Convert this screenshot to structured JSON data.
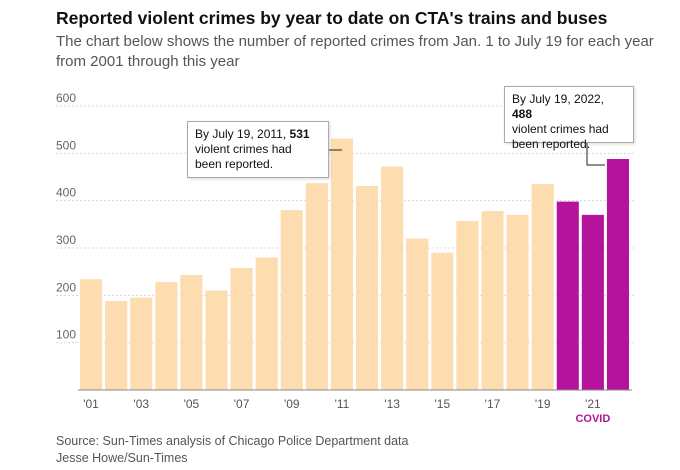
{
  "header": {
    "title": "Reported violent crimes by year to date on CTA's trains and buses",
    "subtitle": "The chart below shows the number of reported crimes from Jan. 1 to July 19 for each year from 2001 through this year"
  },
  "chart_data": {
    "type": "bar",
    "categories": [
      "2001",
      "2002",
      "2003",
      "2004",
      "2005",
      "2006",
      "2007",
      "2008",
      "2009",
      "2010",
      "2011",
      "2012",
      "2013",
      "2014",
      "2015",
      "2016",
      "2017",
      "2018",
      "2019",
      "2020",
      "2021",
      "2022"
    ],
    "values": [
      234,
      188,
      195,
      228,
      243,
      210,
      258,
      280,
      380,
      437,
      531,
      431,
      472,
      320,
      290,
      357,
      378,
      370,
      435,
      398,
      370,
      488
    ],
    "x_tick_labels": [
      "'01",
      "'03",
      "'05",
      "'07",
      "'09",
      "'11",
      "'13",
      "'15",
      "'17",
      "'19",
      "'21"
    ],
    "y_ticks": [
      100,
      200,
      300,
      400,
      500,
      600
    ],
    "ylim": [
      0,
      620
    ],
    "grid": true,
    "colors": {
      "normal": "#fddcb0",
      "covid": "#b5129e"
    },
    "covid_years": [
      "2020",
      "2021",
      "2022"
    ],
    "covid_label": "COVID",
    "annotations": [
      {
        "year": "2011",
        "pre": "By July 19, 2011,",
        "value": "531",
        "post": "violent crimes had been reported."
      },
      {
        "year": "2022",
        "pre": "By July 19, 2022,",
        "value": "488",
        "post": "violent crimes had been reported."
      }
    ]
  },
  "footer": {
    "source": "Source: Sun-Times analysis of Chicago Police Department data",
    "credit": "Jesse Howe/Sun-Times"
  }
}
